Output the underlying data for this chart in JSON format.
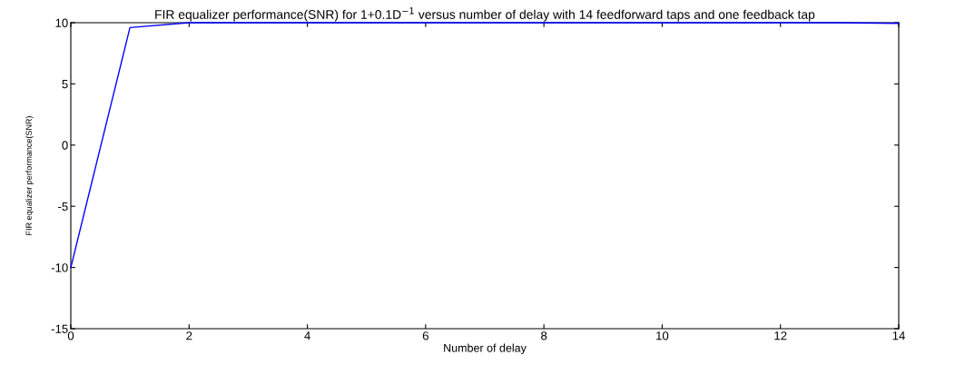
{
  "chart_data": {
    "type": "line",
    "title": "FIR equalizer performance(SNR) for 1+0.1D$^{−1}$ versus number of delay with 14 feedforward taps and one feedback tap",
    "xlabel": "Number of delay",
    "ylabel": "FIR equalizer performance(SNR)",
    "x": [
      0,
      1,
      2,
      3,
      4,
      5,
      6,
      7,
      8,
      9,
      10,
      11,
      12,
      13,
      14
    ],
    "series": [
      {
        "color": "#0000ff",
        "values": [
          -10,
          9.6,
          10,
          10,
          10,
          10,
          10,
          10,
          10,
          10,
          10,
          10,
          10,
          10,
          9.95
        ]
      }
    ],
    "xlim": [
      0,
      14
    ],
    "xticks": [
      0,
      2,
      4,
      6,
      8,
      10,
      12,
      14
    ],
    "ylim": [
      -15,
      10
    ],
    "yticks": [
      -15,
      -10,
      -5,
      0,
      5,
      10
    ],
    "grid": false,
    "legend": false,
    "marker": "none",
    "line_style": "solid"
  }
}
